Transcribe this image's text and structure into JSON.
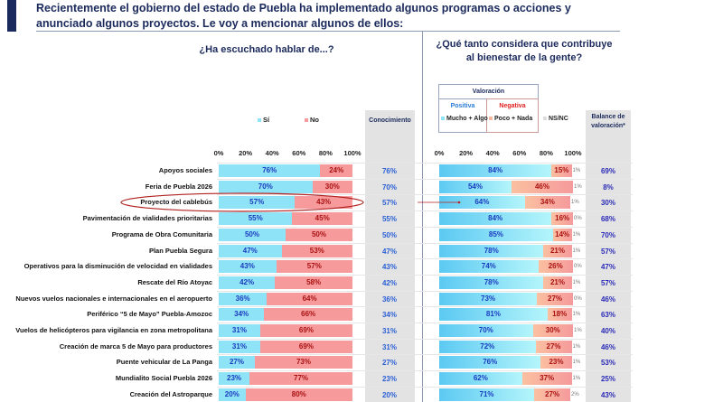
{
  "title": "Recientemente el gobierno del estado de Puebla ha implementado algunos programas o acciones y anunciado algunos proyectos. Le voy a mencionar algunos de ellos:",
  "left_question": "¿Ha escuchado hablar de...?",
  "right_question_line1": "¿Qué tanto considera que contribuye",
  "right_question_line2": "al bienestar de la gente?",
  "headers": {
    "conocimiento": "Conocimiento",
    "valoracion": "Valoración",
    "positiva": "Positiva",
    "negativa": "Negativa",
    "balance": "Balance de valoración*"
  },
  "legend": {
    "si": "Sí",
    "no": "No",
    "mucho_algo": "Mucho + Algo",
    "poco_nada": "Poco + Nada",
    "nsnc": "NS/NC"
  },
  "colors": {
    "si": "#8fe3f7",
    "no": "#f69a9c",
    "positiva": "#5cc9f2",
    "negativa": "#f59a9c",
    "highlight": "#b22222"
  },
  "chart_data": {
    "type": "bar",
    "stacked": true,
    "orientation": "horizontal",
    "axis_ticks": [
      "0%",
      "20%",
      "40%",
      "60%",
      "80%",
      "100%"
    ],
    "xlim": [
      0,
      100
    ],
    "highlighted_category": "Proyecto del cablebús",
    "categories": [
      "Apoyos sociales",
      "Feria de Puebla 2026",
      "Proyecto del cablebús",
      "Pavimentación de vialidades prioritarias",
      "Programa de Obra Comunitaria",
      "Plan Puebla Segura",
      "Operativos para la disminución de velocidad en vialidades",
      "Rescate del Río Atoyac",
      "Nuevos vuelos nacionales e internacionales en el aeropuerto",
      "Periférico “5 de Mayo” Puebla-Amozoc",
      "Vuelos de helicópteros para vigilancia en zona metropolitana",
      "Creación de marca 5 de Mayo para productores",
      "Puente vehicular de La Panga",
      "Mundialito Social Puebla 2026",
      "Creación del Astroparque"
    ],
    "si": [
      76,
      70,
      57,
      55,
      50,
      47,
      43,
      42,
      36,
      34,
      31,
      31,
      27,
      23,
      20
    ],
    "no": [
      24,
      30,
      43,
      45,
      50,
      53,
      57,
      58,
      64,
      66,
      69,
      69,
      73,
      77,
      80
    ],
    "conocimiento": [
      76,
      70,
      57,
      55,
      50,
      47,
      43,
      42,
      36,
      34,
      31,
      31,
      27,
      23,
      20
    ],
    "mucho_algo": [
      84,
      54,
      64,
      84,
      85,
      78,
      74,
      78,
      73,
      81,
      70,
      72,
      76,
      62,
      71
    ],
    "poco_nada": [
      15,
      46,
      34,
      16,
      14,
      21,
      26,
      21,
      27,
      18,
      30,
      27,
      23,
      37,
      27
    ],
    "nsnc": [
      1,
      1,
      1,
      0,
      1,
      1,
      0,
      1,
      0,
      1,
      1,
      1,
      1,
      1,
      2
    ],
    "balance": [
      69,
      8,
      30,
      68,
      70,
      57,
      47,
      57,
      46,
      63,
      40,
      46,
      53,
      25,
      43
    ]
  }
}
